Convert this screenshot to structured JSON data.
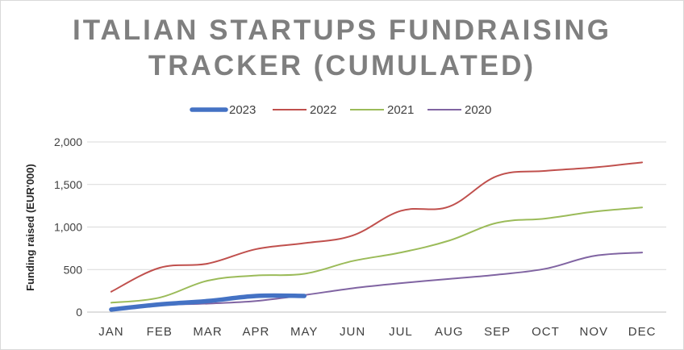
{
  "chart_data": {
    "type": "line",
    "title_lines": [
      "ITALIAN STARTUPS FUNDRAISING",
      "TRACKER (CUMULATED)"
    ],
    "ylabel": "Funding raised (EUR'000)",
    "xlabel": "",
    "categories": [
      "JAN",
      "FEB",
      "MAR",
      "APR",
      "MAY",
      "JUN",
      "JUL",
      "AUG",
      "SEP",
      "OCT",
      "NOV",
      "DEC"
    ],
    "ylim": [
      0,
      2000
    ],
    "yticks": [
      0,
      500,
      1000,
      1500,
      2000
    ],
    "ytick_labels": [
      "0",
      "500",
      "1,000",
      "1,500",
      "2,000"
    ],
    "grid": true,
    "legend_position": "top",
    "series": [
      {
        "name": "2023",
        "color": "#4472c4",
        "values": [
          30,
          90,
          130,
          190,
          190,
          null,
          null,
          null,
          null,
          null,
          null,
          null
        ]
      },
      {
        "name": "2022",
        "color": "#c0504d",
        "values": [
          240,
          520,
          570,
          740,
          810,
          900,
          1190,
          1240,
          1600,
          1660,
          1700,
          1760
        ]
      },
      {
        "name": "2021",
        "color": "#9bbb59",
        "values": [
          110,
          170,
          370,
          430,
          450,
          600,
          700,
          840,
          1050,
          1100,
          1180,
          1230
        ]
      },
      {
        "name": "2020",
        "color": "#8064a2",
        "values": [
          20,
          80,
          100,
          130,
          200,
          280,
          340,
          390,
          440,
          510,
          660,
          700
        ]
      }
    ]
  }
}
